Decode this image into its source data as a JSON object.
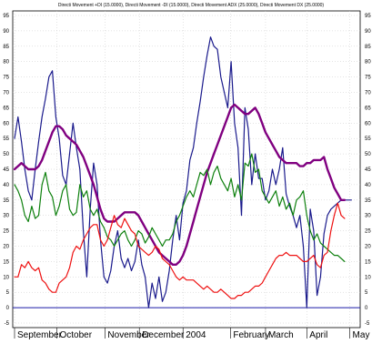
{
  "chart_data": {
    "type": "line",
    "title": "Directi Movement +DI (15.0000), Directi Movement -DI (15.0000), Directi Movement ADX (25.0000), Directi Movement DX (25.0000)",
    "xlabel": "",
    "ylabel": "",
    "ylim": [
      -5,
      95
    ],
    "yticks": [
      -5,
      0,
      5,
      10,
      15,
      20,
      25,
      30,
      35,
      40,
      45,
      50,
      55,
      60,
      65,
      70,
      75,
      80,
      85,
      90,
      95
    ],
    "grid": true,
    "legend": "none",
    "xlim": [
      0,
      100
    ],
    "x_ticks": [
      {
        "label": "September",
        "pos": 0
      },
      {
        "label": "October",
        "pos": 12.3
      },
      {
        "label": "November",
        "pos": 26.3
      },
      {
        "label": "December",
        "pos": 36.3
      },
      {
        "label": "2004",
        "pos": 49
      },
      {
        "label": "February",
        "pos": 62.8
      },
      {
        "label": "March",
        "pos": 73
      },
      {
        "label": "April",
        "pos": 85
      },
      {
        "label": "May",
        "pos": 97.5
      }
    ],
    "hline": {
      "value": 0,
      "color": "#1a1aa6"
    },
    "series": [
      {
        "key": "dx",
        "color": "#1a1a8c",
        "width": 1.2,
        "x": [
          0,
          1,
          2,
          3,
          4,
          5,
          6,
          7,
          8,
          9,
          10,
          11,
          12,
          13,
          14,
          15,
          16,
          17,
          18,
          19,
          20,
          21,
          22,
          23,
          24,
          25,
          26,
          27,
          28,
          29,
          30,
          31,
          32,
          33,
          34,
          35,
          36,
          37,
          38,
          39,
          40,
          41,
          42,
          43,
          44,
          45,
          46,
          47,
          48,
          49,
          50,
          51,
          52,
          53,
          54,
          55,
          56,
          57,
          58,
          59,
          60,
          61,
          62,
          63,
          64,
          65,
          66,
          67,
          68,
          69,
          70,
          71,
          72,
          73,
          74,
          75,
          76,
          77,
          78,
          79,
          80,
          81,
          82,
          83,
          84,
          85,
          86,
          87,
          88,
          89,
          90,
          91,
          92,
          93,
          94,
          95,
          96,
          97,
          98
        ],
        "y": [
          55,
          62,
          54,
          45,
          38,
          35,
          45,
          54,
          62,
          68,
          75,
          77,
          62,
          55,
          43,
          40,
          50,
          60,
          52,
          45,
          25,
          10,
          32,
          47,
          40,
          22,
          10,
          8,
          12,
          20,
          25,
          16,
          13,
          16,
          12,
          15,
          22,
          14,
          10,
          0,
          8,
          3,
          10,
          2,
          5,
          12,
          22,
          30,
          22,
          34,
          38,
          48,
          52,
          60,
          67,
          75,
          82,
          88,
          85,
          84,
          75,
          70,
          65,
          80,
          60,
          52,
          30,
          65,
          58,
          40,
          50,
          42,
          42,
          35,
          38,
          45,
          40,
          45,
          52,
          37,
          33,
          30,
          26,
          30,
          20,
          0,
          32,
          25,
          4,
          10,
          24,
          30,
          32,
          33,
          34,
          35,
          35,
          35,
          35
        ]
      },
      {
        "key": "adx",
        "color": "#800080",
        "width": 2.4,
        "x": [
          0,
          1,
          2,
          3,
          4,
          5,
          6,
          7,
          8,
          9,
          10,
          11,
          12,
          13,
          14,
          15,
          16,
          17,
          18,
          19,
          20,
          21,
          22,
          23,
          24,
          25,
          26,
          27,
          28,
          29,
          30,
          31,
          32,
          33,
          34,
          35,
          36,
          37,
          38,
          39,
          40,
          41,
          42,
          43,
          44,
          45,
          46,
          47,
          48,
          49,
          50,
          51,
          52,
          53,
          54,
          55,
          56,
          57,
          58,
          59,
          60,
          61,
          62,
          63,
          64,
          65,
          66,
          67,
          68,
          69,
          70,
          71,
          72,
          73,
          74,
          75,
          76,
          77,
          78,
          79,
          80,
          81,
          82,
          83,
          84,
          85,
          86,
          87,
          88,
          89,
          90,
          91,
          92,
          93,
          94,
          95,
          96
        ],
        "y": [
          45,
          46,
          47,
          46,
          45,
          45,
          45,
          46,
          48,
          51,
          54,
          57,
          59,
          59,
          58,
          56,
          55,
          54,
          53,
          51,
          49,
          46,
          43,
          40,
          36,
          32,
          29,
          28,
          28,
          28,
          29,
          30,
          31,
          31,
          31,
          31,
          30,
          28,
          26,
          24,
          22,
          20,
          18,
          17,
          16,
          15,
          14,
          14,
          15,
          17,
          20,
          24,
          28,
          32,
          36,
          40,
          44,
          47,
          50,
          53,
          56,
          59,
          62,
          65,
          66,
          65,
          64,
          63,
          63,
          64,
          65,
          63,
          60,
          57,
          55,
          53,
          51,
          49,
          48,
          47,
          47,
          47,
          47,
          46,
          46,
          47,
          47,
          48,
          48,
          48,
          49,
          45,
          42,
          39,
          37,
          35,
          35
        ]
      },
      {
        "key": "plus_di",
        "color": "#0d800d",
        "width": 1.2,
        "x": [
          0,
          1,
          2,
          3,
          4,
          5,
          6,
          7,
          8,
          9,
          10,
          11,
          12,
          13,
          14,
          15,
          16,
          17,
          18,
          19,
          20,
          21,
          22,
          23,
          24,
          25,
          26,
          27,
          28,
          29,
          30,
          31,
          32,
          33,
          34,
          35,
          36,
          37,
          38,
          39,
          40,
          41,
          42,
          43,
          44,
          45,
          46,
          47,
          48,
          49,
          50,
          51,
          52,
          53,
          54,
          55,
          56,
          57,
          58,
          59,
          60,
          61,
          62,
          63,
          64,
          65,
          66,
          67,
          68,
          69,
          70,
          71,
          72,
          73,
          74,
          75,
          76,
          77,
          78,
          79,
          80,
          81,
          82,
          83,
          84,
          85,
          86,
          87,
          88,
          89,
          90,
          91,
          92,
          93,
          94,
          95,
          96
        ],
        "y": [
          40,
          38,
          35,
          30,
          28,
          33,
          29,
          30,
          40,
          44,
          38,
          36,
          30,
          33,
          38,
          40,
          32,
          30,
          31,
          40,
          36,
          38,
          32,
          30,
          32,
          28,
          26,
          23,
          22,
          20,
          22,
          24,
          25,
          22,
          20,
          22,
          25,
          24,
          21,
          23,
          26,
          24,
          22,
          20,
          22,
          22,
          24,
          28,
          30,
          33,
          36,
          38,
          36,
          40,
          44,
          43,
          45,
          40,
          44,
          46,
          42,
          40,
          38,
          42,
          36,
          40,
          35,
          47,
          46,
          50,
          44,
          45,
          38,
          36,
          34,
          36,
          38,
          33,
          36,
          32,
          34,
          30,
          35,
          36,
          38,
          30,
          25,
          22,
          24,
          21,
          20,
          19,
          18,
          17,
          17,
          16,
          15
        ]
      },
      {
        "key": "minus_di",
        "color": "#ee1111",
        "width": 1.2,
        "x": [
          0,
          1,
          2,
          3,
          4,
          5,
          6,
          7,
          8,
          9,
          10,
          11,
          12,
          13,
          14,
          15,
          16,
          17,
          18,
          19,
          20,
          21,
          22,
          23,
          24,
          25,
          26,
          27,
          28,
          29,
          30,
          31,
          32,
          33,
          34,
          35,
          36,
          37,
          38,
          39,
          40,
          41,
          42,
          43,
          44,
          45,
          46,
          47,
          48,
          49,
          50,
          51,
          52,
          53,
          54,
          55,
          56,
          57,
          58,
          59,
          60,
          61,
          62,
          63,
          64,
          65,
          66,
          67,
          68,
          69,
          70,
          71,
          72,
          73,
          74,
          75,
          76,
          77,
          78,
          79,
          80,
          81,
          82,
          83,
          84,
          85,
          86,
          87,
          88,
          89,
          90,
          91,
          92,
          93,
          94,
          95,
          96
        ],
        "y": [
          10,
          10,
          14,
          13,
          15,
          13,
          12,
          13,
          9,
          8,
          6,
          5,
          5,
          8,
          9,
          10,
          13,
          18,
          20,
          19,
          22,
          24,
          26,
          27,
          27,
          22,
          20,
          22,
          26,
          30,
          27,
          26,
          29,
          27,
          25,
          24,
          20,
          19,
          18,
          17,
          18,
          20,
          19,
          16,
          15,
          14,
          12,
          10,
          9,
          10,
          9,
          9,
          9,
          8,
          7,
          6,
          7,
          6,
          5,
          5,
          6,
          5,
          4,
          3,
          3,
          4,
          4,
          5,
          5,
          6,
          7,
          7,
          8,
          10,
          12,
          14,
          16,
          17,
          17,
          18,
          17,
          17,
          17,
          16,
          15,
          15,
          16,
          17,
          14,
          13,
          17,
          18,
          25,
          30,
          34,
          30,
          29
        ]
      }
    ]
  }
}
